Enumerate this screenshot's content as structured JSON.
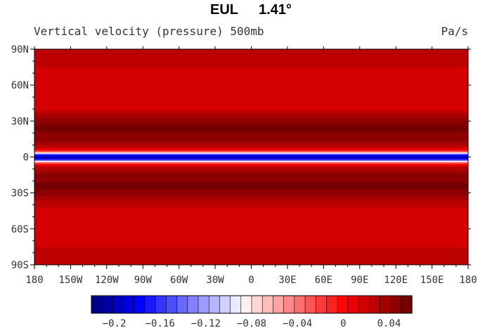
{
  "chart_data": {
    "type": "heatmap",
    "title_left": "EUL",
    "title_right": "1.41°",
    "subtitle": "Vertical velocity (pressure) 500mb",
    "units": "Pa/s",
    "x": {
      "range": [
        -180,
        180
      ],
      "tick_values": [
        -180,
        -150,
        -120,
        -90,
        -60,
        -30,
        0,
        30,
        60,
        90,
        120,
        150,
        180
      ],
      "tick_labels": [
        "180",
        "150W",
        "120W",
        "90W",
        "60W",
        "30W",
        "0",
        "30E",
        "60E",
        "90E",
        "120E",
        "150E",
        "180"
      ]
    },
    "y": {
      "range": [
        -90,
        90
      ],
      "tick_values": [
        90,
        60,
        30,
        0,
        -30,
        -60,
        -90
      ],
      "tick_labels": [
        "90N",
        "60N",
        "30N",
        "0",
        "30S",
        "60S",
        "90S"
      ]
    },
    "zonal_profile": {
      "latitude": [
        -90,
        -80,
        -70,
        -60,
        -50,
        -45,
        -40,
        -35,
        -30,
        -25,
        -20,
        -15,
        -10,
        -6,
        -4,
        -2,
        0,
        2,
        4,
        6,
        10,
        15,
        20,
        25,
        30,
        35,
        40,
        45,
        50,
        60,
        70,
        80,
        90
      ],
      "value": [
        0.03,
        0.025,
        0.02,
        0.02,
        0.015,
        0.02,
        0.025,
        0.035,
        0.045,
        0.055,
        0.05,
        0.045,
        0.035,
        0.01,
        -0.06,
        -0.17,
        -0.2,
        -0.17,
        -0.06,
        0.01,
        0.035,
        0.045,
        0.05,
        0.055,
        0.045,
        0.035,
        0.02,
        0.015,
        0.015,
        0.02,
        0.02,
        0.025,
        0.03
      ]
    },
    "colorbar": {
      "min": -0.22,
      "max": 0.06,
      "tick_values": [
        -0.2,
        -0.16,
        -0.12,
        -0.08,
        -0.04,
        0,
        0.04
      ],
      "tick_labels": [
        "−0.2",
        "−0.16",
        "−0.12",
        "−0.08",
        "−0.04",
        "0",
        "0.04"
      ],
      "colors": [
        "#00008b",
        "#0000a5",
        "#0000bf",
        "#0000d9",
        "#0000ff",
        "#1a1aff",
        "#3434ff",
        "#4e4eff",
        "#6868ff",
        "#8282ff",
        "#9c9cff",
        "#b6b6ff",
        "#d0d0ff",
        "#eaeaff",
        "#fff0f0",
        "#ffd6d6",
        "#ffbcbc",
        "#ffa2a2",
        "#ff8888",
        "#ff6e6e",
        "#ff5454",
        "#ff3a3a",
        "#ff2020",
        "#ff0606",
        "#ec0000",
        "#d40000",
        "#bc0000",
        "#a40000",
        "#8c0000",
        "#740000"
      ]
    }
  }
}
